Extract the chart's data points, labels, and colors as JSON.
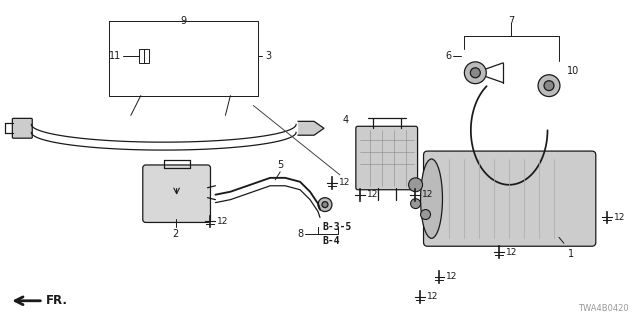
{
  "bg_color": "#ffffff",
  "fig_width": 6.4,
  "fig_height": 3.2,
  "dpi": 100,
  "watermark": "TWA4B0420",
  "lc": "#1a1a1a"
}
